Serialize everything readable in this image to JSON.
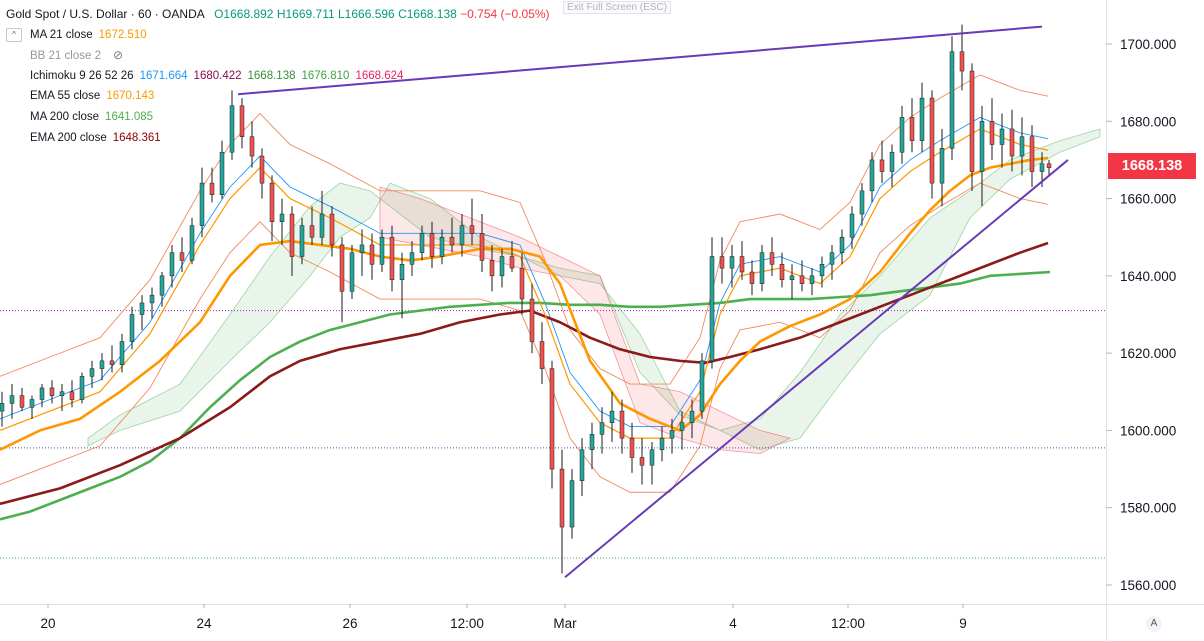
{
  "chart_data": {
    "type": "candlestick",
    "title": "Gold Spot / U.S. Dollar · 60 · OANDA",
    "ohlc_readout": {
      "o": "O1668.892",
      "h": "H1669.711",
      "l": "L1666.596",
      "c": "C1668.138",
      "chg": "−0.754 (−0.05%)"
    },
    "ylim": [
      1557,
      1710
    ],
    "y_ticks": [
      "1560.000",
      "1580.000",
      "1600.000",
      "1620.000",
      "1640.000",
      "1660.000",
      "1680.000",
      "1700.000"
    ],
    "x_ticks": [
      "20",
      "24",
      "26",
      "12:00",
      "Mar",
      "4",
      "12:00",
      "9"
    ],
    "last_price": "1668.138",
    "indicators": [
      {
        "name": "MA 21 close",
        "values": [
          "1672.510"
        ],
        "color": "#ff9800"
      },
      {
        "name": "BB 21 close 2",
        "values": [],
        "color": "#f57c00"
      },
      {
        "name": "Ichimoku 9 26 52 26",
        "values": [
          "1671.664",
          "1680.422",
          "1668.138",
          "1676.810",
          "1668.624"
        ],
        "colors": [
          "#2196f3",
          "#880e4f",
          "#388e3c",
          "#43a047",
          "#e91e63"
        ]
      },
      {
        "name": "EMA 55 close",
        "values": [
          "1670.143"
        ],
        "color": "#ff9800"
      },
      {
        "name": "MA 200 close",
        "values": [
          "1641.085"
        ],
        "color": "#4caf50"
      },
      {
        "name": "EMA 200 close",
        "values": [
          "1648.361"
        ],
        "color": "#8b0000"
      }
    ],
    "series": [
      {
        "name": "MA 200 close",
        "color": "#4caf50",
        "x": [
          0,
          30,
          60,
          90,
          120,
          150,
          180,
          210,
          240,
          270,
          300,
          330,
          360,
          390,
          420,
          450,
          480,
          510,
          540,
          570,
          600,
          630,
          660,
          690,
          720,
          750,
          780,
          810,
          840,
          870,
          900,
          930,
          960,
          990,
          1020,
          1050
        ],
        "y": [
          1577,
          1579,
          1582,
          1585,
          1588,
          1592,
          1598,
          1606,
          1613,
          1619,
          1623,
          1626,
          1628,
          1630,
          1631,
          1632,
          1632.5,
          1633,
          1633,
          1632.5,
          1632.5,
          1632,
          1632,
          1632.5,
          1633,
          1634,
          1634,
          1634,
          1634.5,
          1635,
          1636,
          1637,
          1638,
          1640,
          1640.5,
          1641
        ]
      },
      {
        "name": "EMA 200 close",
        "color": "#8b1a1a",
        "x": [
          0,
          60,
          120,
          180,
          230,
          270,
          300,
          340,
          380,
          420,
          460,
          500,
          530,
          560,
          590,
          620,
          650,
          680,
          705,
          730,
          760,
          800,
          840,
          870,
          900,
          930,
          960,
          990,
          1020,
          1048
        ],
        "y": [
          1581,
          1585,
          1591,
          1598,
          1606,
          1614,
          1618,
          1621,
          1623,
          1625,
          1628,
          1630,
          1631,
          1628,
          1624,
          1621,
          1619,
          1618,
          1617.5,
          1619,
          1621,
          1624,
          1628,
          1631,
          1634,
          1637,
          1640,
          1643,
          1646,
          1648.5
        ]
      },
      {
        "name": "EMA 55 close",
        "color": "#ff9800",
        "x": [
          0,
          40,
          80,
          120,
          160,
          200,
          230,
          260,
          290,
          320,
          350,
          380,
          410,
          440,
          480,
          510,
          540,
          560,
          590,
          620,
          650,
          680,
          700,
          720,
          740,
          760,
          790,
          820,
          850,
          880,
          910,
          930,
          950,
          970,
          990,
          1010,
          1030,
          1048
        ],
        "y": [
          1595,
          1600,
          1603,
          1610,
          1618,
          1628,
          1640,
          1648,
          1649,
          1648,
          1647,
          1645,
          1644,
          1645,
          1647,
          1647,
          1645,
          1638,
          1618,
          1607,
          1603,
          1600,
          1604,
          1612,
          1618,
          1623,
          1627,
          1630,
          1634,
          1641,
          1651,
          1657,
          1662,
          1666,
          1668,
          1669,
          1670,
          1670.5
        ]
      },
      {
        "name": "MA 21 close",
        "color": "#ff9800",
        "x": [
          0,
          50,
          100,
          150,
          200,
          230,
          260,
          290,
          330,
          380,
          430,
          480,
          520,
          545,
          570,
          600,
          630,
          670,
          700,
          720,
          740,
          780,
          820,
          850,
          880,
          910,
          940,
          960,
          980,
          1000,
          1020,
          1048
        ],
        "y": [
          1600,
          1605,
          1610,
          1625,
          1648,
          1660,
          1668,
          1660,
          1655,
          1648,
          1648,
          1648,
          1645,
          1630,
          1612,
          1602,
          1598,
          1598,
          1610,
          1630,
          1640,
          1642,
          1638,
          1645,
          1660,
          1667,
          1672,
          1675,
          1678,
          1676,
          1674,
          1672.5
        ]
      }
    ],
    "trendlines": [
      {
        "x": [
          238,
          1042
        ],
        "y": [
          1687,
          1704.5
        ]
      },
      {
        "x": [
          565,
          1068
        ],
        "y": [
          1562,
          1670
        ]
      }
    ],
    "hlines": [
      1631,
      1595.5,
      1567
    ],
    "candles_sample": [
      [
        0,
        1605,
        1610,
        1601,
        1607
      ],
      [
        10,
        1607,
        1612,
        1603,
        1609
      ],
      [
        20,
        1609,
        1611,
        1605,
        1606
      ],
      [
        30,
        1606,
        1609,
        1603,
        1608
      ],
      [
        40,
        1608,
        1612,
        1606,
        1611
      ],
      [
        50,
        1611,
        1613,
        1607,
        1609
      ],
      [
        60,
        1609,
        1612,
        1605,
        1610
      ],
      [
        70,
        1610,
        1613,
        1606,
        1608
      ],
      [
        80,
        1608,
        1615,
        1607,
        1614
      ],
      [
        90,
        1614,
        1618,
        1611,
        1616
      ],
      [
        100,
        1616,
        1620,
        1613,
        1618
      ],
      [
        110,
        1618,
        1622,
        1615,
        1617
      ],
      [
        120,
        1617,
        1625,
        1615,
        1623
      ],
      [
        130,
        1623,
        1632,
        1621,
        1630
      ],
      [
        140,
        1630,
        1635,
        1626,
        1633
      ],
      [
        150,
        1633,
        1637,
        1629,
        1635
      ],
      [
        160,
        1635,
        1641,
        1632,
        1640
      ],
      [
        170,
        1640,
        1648,
        1637,
        1646
      ],
      [
        180,
        1646,
        1650,
        1641,
        1644
      ],
      [
        190,
        1644,
        1655,
        1643,
        1653
      ],
      [
        200,
        1653,
        1668,
        1650,
        1664
      ],
      [
        210,
        1664,
        1668,
        1659,
        1661
      ],
      [
        220,
        1661,
        1675,
        1660,
        1672
      ],
      [
        230,
        1672,
        1688,
        1670,
        1684
      ],
      [
        240,
        1684,
        1686,
        1673,
        1676
      ],
      [
        250,
        1676,
        1680,
        1668,
        1671
      ],
      [
        260,
        1671,
        1673,
        1660,
        1664
      ],
      [
        270,
        1664,
        1666,
        1649,
        1654
      ],
      [
        280,
        1654,
        1660,
        1648,
        1656
      ],
      [
        290,
        1656,
        1658,
        1640,
        1645
      ],
      [
        300,
        1645,
        1655,
        1643,
        1653
      ],
      [
        310,
        1653,
        1658,
        1648,
        1650
      ],
      [
        320,
        1650,
        1662,
        1648,
        1656
      ],
      [
        330,
        1656,
        1658,
        1645,
        1648
      ],
      [
        340,
        1648,
        1650,
        1628,
        1636
      ],
      [
        350,
        1636,
        1648,
        1634,
        1646
      ],
      [
        360,
        1646,
        1652,
        1640,
        1648
      ],
      [
        370,
        1648,
        1651,
        1639,
        1643
      ],
      [
        380,
        1643,
        1652,
        1641,
        1650
      ],
      [
        390,
        1650,
        1653,
        1636,
        1639
      ],
      [
        400,
        1639,
        1646,
        1629,
        1643
      ],
      [
        410,
        1643,
        1649,
        1640,
        1646
      ],
      [
        420,
        1646,
        1653,
        1644,
        1651
      ],
      [
        430,
        1651,
        1654,
        1642,
        1645
      ],
      [
        440,
        1645,
        1652,
        1643,
        1650
      ],
      [
        450,
        1650,
        1655,
        1646,
        1648
      ],
      [
        460,
        1648,
        1656,
        1645,
        1653
      ],
      [
        470,
        1653,
        1660,
        1648,
        1651
      ],
      [
        480,
        1651,
        1656,
        1641,
        1644
      ],
      [
        490,
        1644,
        1648,
        1636,
        1640
      ],
      [
        500,
        1640,
        1647,
        1637,
        1645
      ],
      [
        510,
        1645,
        1649,
        1641,
        1642
      ],
      [
        520,
        1642,
        1646,
        1630,
        1634
      ],
      [
        530,
        1634,
        1638,
        1620,
        1623
      ],
      [
        540,
        1623,
        1628,
        1612,
        1616
      ],
      [
        550,
        1616,
        1618,
        1585,
        1590
      ],
      [
        560,
        1590,
        1595,
        1563,
        1575
      ],
      [
        570,
        1575,
        1590,
        1572,
        1587
      ],
      [
        580,
        1587,
        1598,
        1583,
        1595
      ],
      [
        590,
        1595,
        1602,
        1590,
        1599
      ],
      [
        600,
        1599,
        1606,
        1594,
        1602
      ],
      [
        610,
        1602,
        1610,
        1597,
        1605
      ],
      [
        620,
        1605,
        1608,
        1594,
        1598
      ],
      [
        630,
        1598,
        1602,
        1589,
        1593
      ],
      [
        640,
        1593,
        1598,
        1586,
        1591
      ],
      [
        650,
        1591,
        1597,
        1586,
        1595
      ],
      [
        660,
        1595,
        1601,
        1592,
        1598
      ],
      [
        670,
        1598,
        1603,
        1594,
        1600
      ],
      [
        680,
        1600,
        1605,
        1595,
        1602
      ],
      [
        690,
        1602,
        1608,
        1598,
        1605
      ],
      [
        700,
        1605,
        1620,
        1603,
        1618
      ],
      [
        710,
        1618,
        1650,
        1616,
        1645
      ],
      [
        720,
        1645,
        1650,
        1638,
        1642
      ],
      [
        730,
        1642,
        1648,
        1637,
        1645
      ],
      [
        740,
        1645,
        1649,
        1639,
        1641
      ],
      [
        750,
        1641,
        1644,
        1635,
        1638
      ],
      [
        760,
        1638,
        1648,
        1636,
        1646
      ],
      [
        770,
        1646,
        1650,
        1640,
        1643
      ],
      [
        780,
        1643,
        1646,
        1637,
        1639
      ],
      [
        790,
        1639,
        1643,
        1634,
        1640
      ],
      [
        800,
        1640,
        1644,
        1636,
        1638
      ],
      [
        810,
        1638,
        1642,
        1635,
        1640
      ],
      [
        820,
        1640,
        1645,
        1637,
        1643
      ],
      [
        830,
        1643,
        1648,
        1639,
        1646
      ],
      [
        840,
        1646,
        1652,
        1643,
        1650
      ],
      [
        850,
        1650,
        1658,
        1647,
        1656
      ],
      [
        860,
        1656,
        1664,
        1653,
        1662
      ],
      [
        870,
        1662,
        1672,
        1659,
        1670
      ],
      [
        880,
        1670,
        1675,
        1664,
        1667
      ],
      [
        890,
        1667,
        1674,
        1663,
        1672
      ],
      [
        900,
        1672,
        1684,
        1669,
        1681
      ],
      [
        910,
        1681,
        1686,
        1672,
        1675
      ],
      [
        920,
        1675,
        1690,
        1672,
        1686
      ],
      [
        930,
        1686,
        1688,
        1660,
        1664
      ],
      [
        940,
        1664,
        1678,
        1658,
        1673
      ],
      [
        950,
        1673,
        1702,
        1670,
        1698
      ],
      [
        960,
        1698,
        1705,
        1688,
        1693
      ],
      [
        970,
        1693,
        1695,
        1662,
        1667
      ],
      [
        980,
        1667,
        1684,
        1658,
        1680
      ],
      [
        990,
        1680,
        1686,
        1670,
        1674
      ],
      [
        1000,
        1674,
        1682,
        1668,
        1678
      ],
      [
        1010,
        1678,
        1683,
        1667,
        1671
      ],
      [
        1020,
        1671,
        1681,
        1666,
        1676
      ],
      [
        1030,
        1676,
        1679,
        1663,
        1667
      ],
      [
        1040,
        1667,
        1672,
        1663,
        1669
      ],
      [
        1047,
        1669,
        1670,
        1666,
        1668
      ]
    ]
  },
  "ui": {
    "exit_fullscreen_label": "Exit Full Screen (ESC)",
    "collapse_glyph": "^",
    "auto_scale_label": "A"
  }
}
